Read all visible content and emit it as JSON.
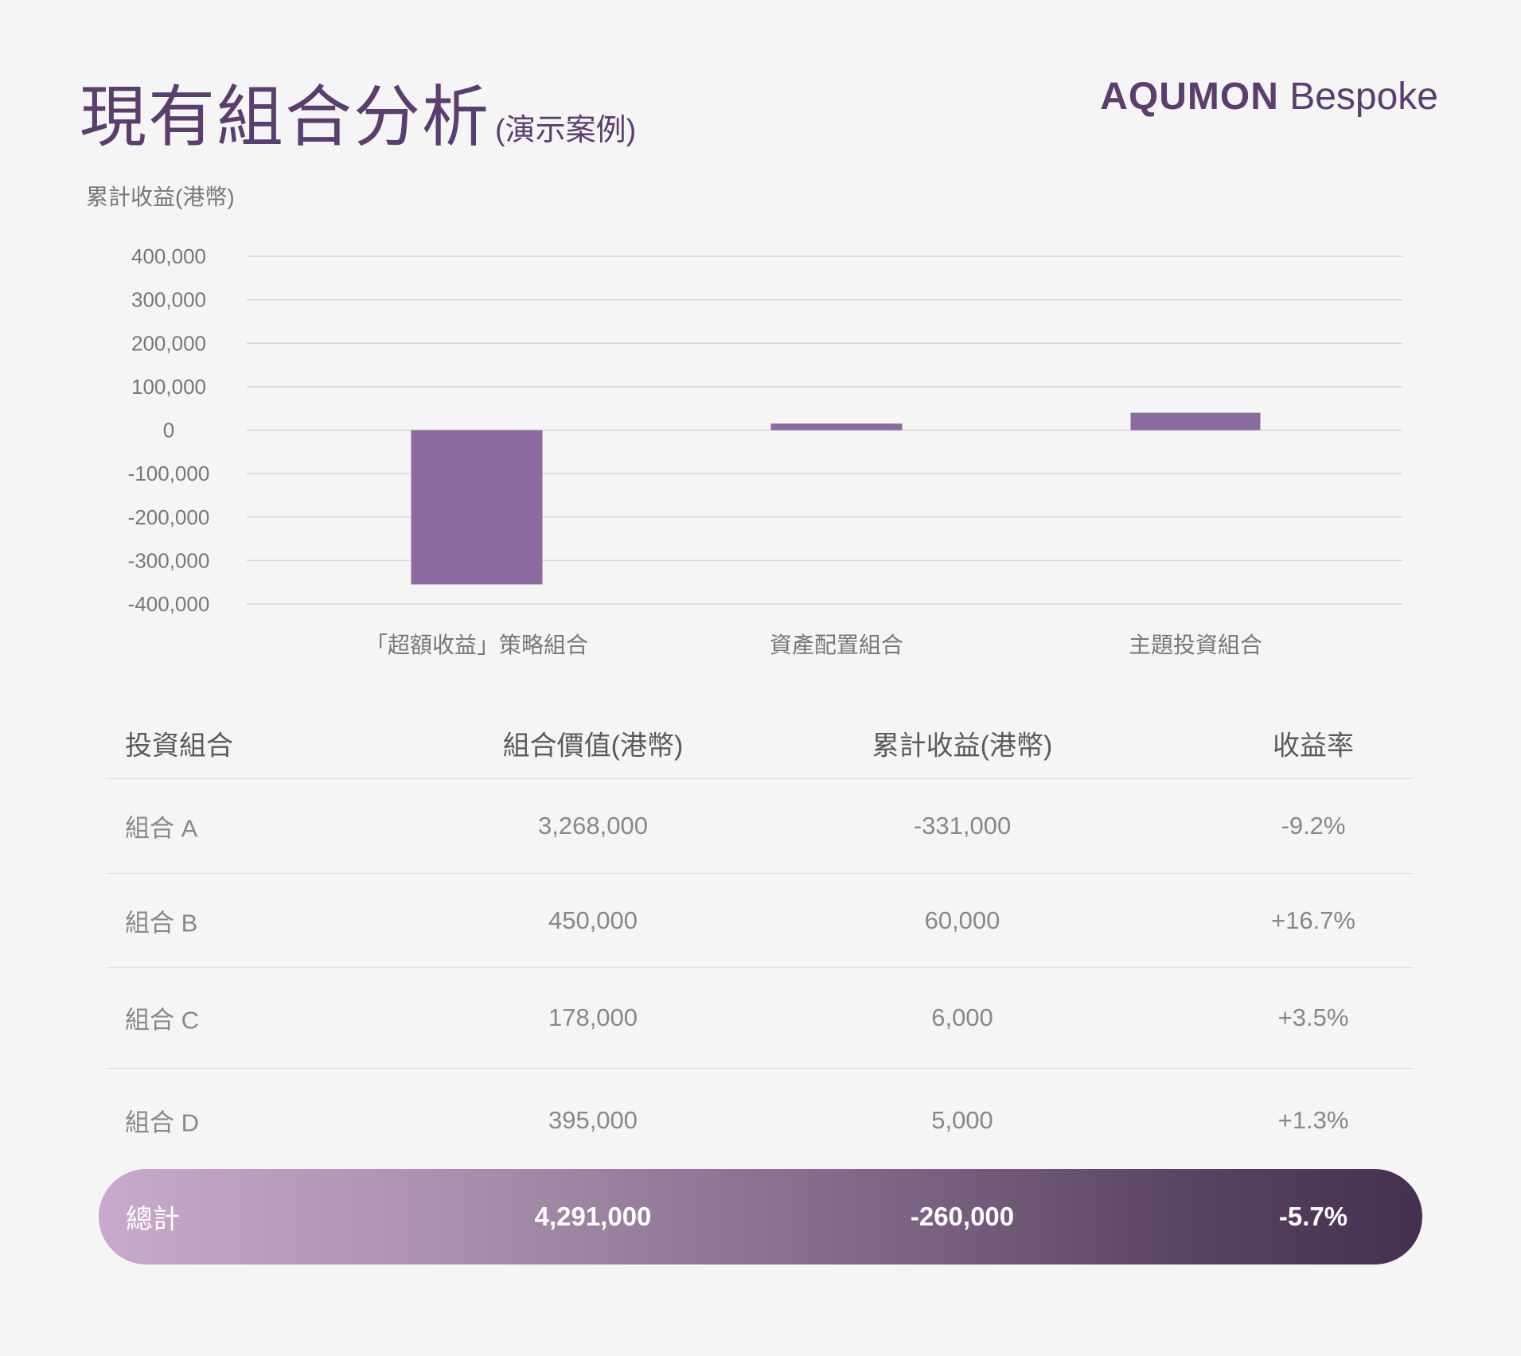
{
  "header": {
    "title": "現有組合分析",
    "subtitle": "(演示案例)",
    "brand_bold": "AQUMON",
    "brand_light": "Bespoke"
  },
  "colors": {
    "accent": "#5a3e6e",
    "bar": "#8b6aa1",
    "total_gradient_start": "#c8aacb",
    "total_gradient_end": "#45304f"
  },
  "chart_data": {
    "type": "bar",
    "title": "",
    "ylabel": "累計收益(港幣)",
    "xlabel": "",
    "ylim": [
      -400000,
      400000
    ],
    "yticks": [
      400000,
      300000,
      200000,
      100000,
      0,
      -100000,
      -200000,
      -300000,
      -400000
    ],
    "ytick_labels": [
      "400,000",
      "300,000",
      "200,000",
      "100,000",
      "0",
      "-100,000",
      "-200,000",
      "-300,000",
      "-400,000"
    ],
    "grid": true,
    "legend": "none",
    "categories": [
      "「超額收益」策略組合",
      "資產配置組合",
      "主題投資組合"
    ],
    "values": [
      -355000,
      15000,
      40000
    ]
  },
  "table": {
    "headers": [
      "投資組合",
      "組合價值(港幣)",
      "累計收益(港幣)",
      "收益率"
    ],
    "rows": [
      [
        "組合 A",
        "3,268,000",
        "-331,000",
        "-9.2%"
      ],
      [
        "組合 B",
        "450,000",
        "60,000",
        "+16.7%"
      ],
      [
        "組合 C",
        "178,000",
        "6,000",
        "+3.5%"
      ],
      [
        "組合 D",
        "395,000",
        "5,000",
        "+1.3%"
      ]
    ],
    "total": [
      "總計",
      "4,291,000",
      "-260,000",
      "-5.7%"
    ]
  }
}
